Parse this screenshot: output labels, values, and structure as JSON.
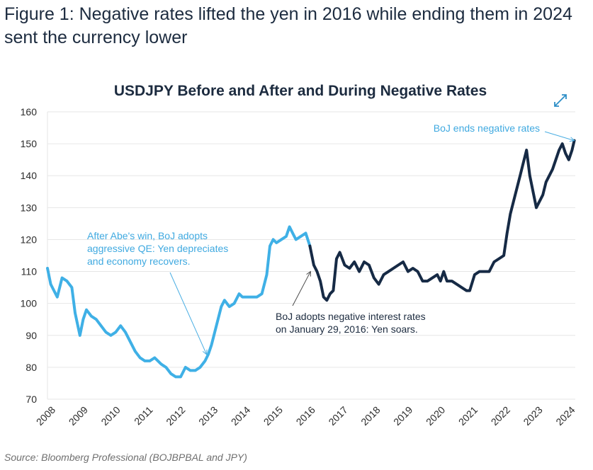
{
  "figure": {
    "title": "Figure 1: Negative rates lifted the yen in 2016 while ending them in 2024 sent the currency lower",
    "source": "Source: Bloomberg Professional (BOJBPBAL and JPY)"
  },
  "colors": {
    "before_negative": "#3fb0e6",
    "during_negative": "#162a45",
    "after_negative": "#3fb0e6",
    "grid": "#e6e6e6"
  },
  "icons": {
    "expand": "expand-arrows-icon"
  },
  "chart_data": {
    "type": "line",
    "title": "USDJPY Before and After and During Negative Rates",
    "xlabel": "",
    "ylabel": "",
    "xlim": [
      2008.0,
      2024.25
    ],
    "ylim": [
      70,
      160
    ],
    "y_ticks": [
      "160",
      "150",
      "140",
      "130",
      "120",
      "110",
      "100",
      "90",
      "80",
      "70"
    ],
    "x_ticks": [
      "2008",
      "2009",
      "2010",
      "2011",
      "2012",
      "2013",
      "2014",
      "2015",
      "2016",
      "2017",
      "2018",
      "2019",
      "2020",
      "2021",
      "2022",
      "2023",
      "2024"
    ],
    "grid": true,
    "series": [
      {
        "segment": "before",
        "x": [
          2008.0,
          2008.1,
          2008.2,
          2008.3,
          2008.45,
          2008.6,
          2008.75,
          2008.85,
          2009.0,
          2009.1,
          2009.2,
          2009.35,
          2009.5,
          2009.65,
          2009.8,
          2009.95,
          2010.1,
          2010.25,
          2010.4,
          2010.55,
          2010.7,
          2010.85,
          2011.0,
          2011.15,
          2011.3,
          2011.5,
          2011.65,
          2011.8,
          2011.95,
          2012.1,
          2012.25,
          2012.4,
          2012.55,
          2012.7,
          2012.85,
          2012.95,
          2013.05,
          2013.15,
          2013.25,
          2013.35,
          2013.45,
          2013.6,
          2013.75,
          2013.9,
          2014.0,
          2014.15,
          2014.3,
          2014.45,
          2014.6,
          2014.75,
          2014.85,
          2014.95,
          2015.05,
          2015.2,
          2015.35,
          2015.45,
          2015.55,
          2015.65,
          2015.8,
          2015.95,
          2016.08
        ],
        "y": [
          111,
          106,
          104,
          102,
          108,
          107,
          105,
          97,
          90,
          95,
          98,
          96,
          95,
          93,
          91,
          90,
          91,
          93,
          91,
          88,
          85,
          83,
          82,
          82,
          83,
          81,
          80,
          78,
          77,
          77,
          80,
          79,
          79,
          80,
          82,
          84,
          87,
          91,
          95,
          99,
          101,
          99,
          100,
          103,
          102,
          102,
          102,
          102,
          103,
          109,
          118,
          120,
          119,
          120,
          121,
          124,
          122,
          120,
          121,
          122,
          118
        ]
      },
      {
        "segment": "during",
        "x": [
          2016.08,
          2016.2,
          2016.3,
          2016.4,
          2016.5,
          2016.6,
          2016.7,
          2016.8,
          2016.9,
          2017.0,
          2017.15,
          2017.3,
          2017.45,
          2017.6,
          2017.75,
          2017.9,
          2018.05,
          2018.2,
          2018.35,
          2018.5,
          2018.65,
          2018.8,
          2018.95,
          2019.1,
          2019.25,
          2019.4,
          2019.55,
          2019.7,
          2019.85,
          2020.0,
          2020.1,
          2020.2,
          2020.3,
          2020.45,
          2020.6,
          2020.75,
          2020.9,
          2021.0,
          2021.15,
          2021.3,
          2021.45,
          2021.6,
          2021.75,
          2021.9,
          2022.05,
          2022.15,
          2022.25,
          2022.35,
          2022.45,
          2022.55,
          2022.65,
          2022.75,
          2022.85,
          2022.95,
          2023.05,
          2023.15,
          2023.25,
          2023.35,
          2023.45,
          2023.55,
          2023.65,
          2023.75,
          2023.85,
          2023.95,
          2024.05,
          2024.15,
          2024.22
        ],
        "y": [
          118,
          112,
          110,
          107,
          102,
          101,
          103,
          104,
          114,
          116,
          112,
          111,
          113,
          110,
          113,
          112,
          108,
          106,
          109,
          110,
          111,
          112,
          113,
          110,
          111,
          110,
          107,
          107,
          108,
          109,
          107,
          110,
          107,
          107,
          106,
          105,
          104,
          104,
          109,
          110,
          110,
          110,
          113,
          114,
          115,
          122,
          128,
          132,
          136,
          140,
          144,
          148,
          140,
          135,
          130,
          132,
          134,
          138,
          140,
          142,
          145,
          148,
          150,
          147,
          145,
          148,
          151
        ]
      }
    ],
    "annotations": [
      {
        "lines": [
          "After Abe's win, BoJ adopts",
          "aggressive QE: Yen depreciates",
          "and economy recovers."
        ],
        "target": [
          2012.9,
          84
        ],
        "style": "light"
      },
      {
        "lines": [
          "BoJ adopts negative interest rates",
          "on January 29, 2016: Yen soars."
        ],
        "target": [
          2016.1,
          110
        ],
        "style": "dark"
      },
      {
        "lines": [
          "BoJ ends negative rates"
        ],
        "target": [
          2024.22,
          151
        ],
        "style": "light"
      }
    ]
  }
}
